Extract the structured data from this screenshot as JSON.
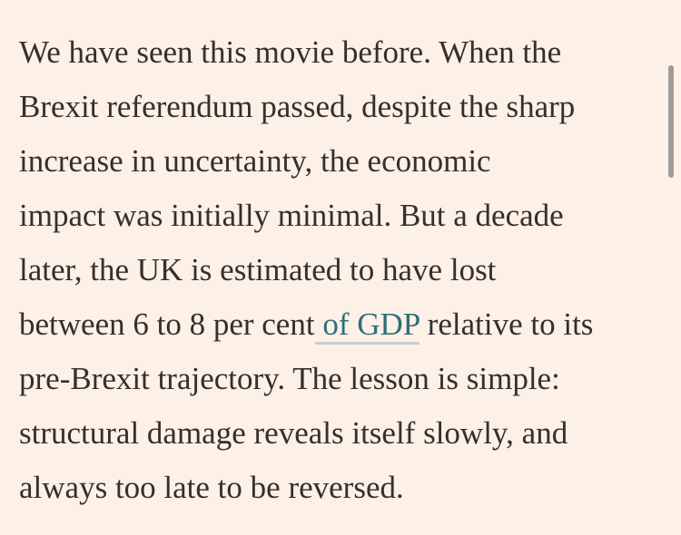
{
  "article": {
    "lines": [
      "We have seen this movie before. When the",
      "Brexit referendum passed, despite the sharp",
      "increase in uncertainty, the economic",
      "impact was initially minimal. But a decade",
      "later, the UK is estimated to have lost"
    ],
    "line6_before": "between 6 to 8 per cent",
    "line6_link": " of GDP",
    "line6_after": " relative to its",
    "lines_after": [
      "pre-Brexit trajectory. The lesson is simple:",
      "structural damage reveals itself slowly, and",
      "always too late to be reversed."
    ]
  },
  "colors": {
    "background": "#fdf0e6",
    "text": "#33302e",
    "link": "#2f6f78"
  }
}
